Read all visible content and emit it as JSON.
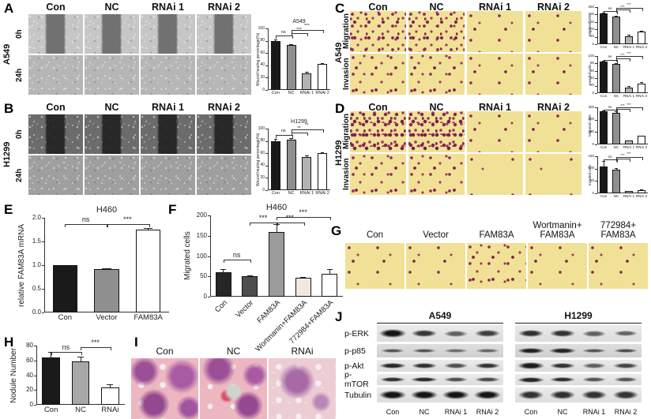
{
  "panels": {
    "A": {
      "letter": "A",
      "cell_line": "A549",
      "row_labels": [
        "0h",
        "24h"
      ],
      "columns": [
        "Con",
        "NC",
        "RNAi 1",
        "RNAi 2"
      ]
    },
    "B": {
      "letter": "B",
      "cell_line": "H1299",
      "row_labels": [
        "0h",
        "24h"
      ],
      "columns": [
        "Con",
        "NC",
        "RNAi 1",
        "RNAi 2"
      ]
    },
    "C": {
      "letter": "C",
      "cell_line": "A549",
      "row_labels": [
        "Migration",
        "Invasion"
      ],
      "columns": [
        "Con",
        "NC",
        "RNAi 1",
        "RNAi 2"
      ]
    },
    "D": {
      "letter": "D",
      "cell_line": "H1299",
      "row_labels": [
        "Migration",
        "Invasion"
      ],
      "columns": [
        "Con",
        "NC",
        "RNAi 1",
        "RNAi 2"
      ]
    },
    "E": {
      "letter": "E"
    },
    "F": {
      "letter": "F"
    },
    "G": {
      "letter": "G",
      "columns": [
        "Con",
        "Vector",
        "FAM83A",
        "Wortmanin+\nFAM83A",
        "772984+\nFAM83A"
      ]
    },
    "H": {
      "letter": "H"
    },
    "I": {
      "letter": "I",
      "columns": [
        "Con",
        "NC",
        "RNAi"
      ]
    },
    "J": {
      "letter": "J",
      "groups": [
        "A549",
        "H1299"
      ],
      "lanes": [
        "Con",
        "NC",
        "RNAi 1",
        "RNAi 2"
      ],
      "rows": [
        {
          "protein": "p-ERK",
          "thickness": 10,
          "a549": [
            1,
            0.78,
            0.5,
            0.72
          ],
          "h1299": [
            0.82,
            0.8,
            0.5,
            0.48
          ]
        },
        {
          "protein": "p-p85",
          "thickness": 7,
          "a549": [
            0.55,
            0.55,
            0.38,
            0.42
          ],
          "h1299": [
            0.92,
            0.88,
            0.55,
            0.6
          ]
        },
        {
          "protein": "p-Akt",
          "thickness": 8,
          "a549": [
            0.88,
            0.82,
            0.62,
            0.8
          ],
          "h1299": [
            0.95,
            0.8,
            0.5,
            0.68
          ]
        },
        {
          "protein": "p-mTOR",
          "thickness": 7,
          "a549": [
            0.82,
            0.88,
            0.62,
            0.66
          ],
          "h1299": [
            0.9,
            0.85,
            0.58,
            0.58
          ]
        },
        {
          "protein": "Tubulin",
          "thickness": 11,
          "a549": [
            1,
            1,
            1,
            1
          ],
          "h1299": [
            0.8,
            0.82,
            0.8,
            0.8
          ]
        }
      ]
    }
  },
  "chart_data": [
    {
      "panel": "A",
      "type": "bar",
      "title": "A549",
      "ylabel": "Wound healing percentage(%)",
      "ylim": [
        0,
        100
      ],
      "yticks": [
        "0",
        "20",
        "40",
        "60",
        "80",
        "100"
      ],
      "categories": [
        "Con",
        "NC",
        "RNAi 1",
        "RNAi 2"
      ],
      "values": [
        80,
        73,
        27,
        42
      ],
      "errors": [
        2,
        2,
        2,
        2
      ],
      "colors": [
        "#1a1a1a",
        "#8f8f8f",
        "#b3b3b3",
        "#ffffff"
      ],
      "sig": [
        {
          "x1": 0,
          "x2": 1,
          "y": 88,
          "label": "ns"
        },
        {
          "x1": 1,
          "x2": 2,
          "y": 92,
          "label": "***"
        },
        {
          "x1": 1,
          "x2": 3,
          "y": 98,
          "label": "***"
        }
      ]
    },
    {
      "panel": "B",
      "type": "bar",
      "title": "H1299",
      "ylabel": "Wound healing percentage(%)",
      "ylim": [
        0,
        100
      ],
      "yticks": [
        "0",
        "20",
        "40",
        "60",
        "80",
        "100"
      ],
      "categories": [
        "Con",
        "NC",
        "RNAi 1",
        "RNAi 2"
      ],
      "values": [
        80,
        82,
        54,
        60
      ],
      "errors": [
        3,
        2,
        3,
        2
      ],
      "colors": [
        "#1a1a1a",
        "#8f8f8f",
        "#b3b3b3",
        "#ffffff"
      ],
      "sig": [
        {
          "x1": 0,
          "x2": 1,
          "y": 90,
          "label": "ns"
        },
        {
          "x1": 1,
          "x2": 2,
          "y": 94,
          "label": "**"
        },
        {
          "x1": 1,
          "x2": 3,
          "y": 99,
          "label": "**"
        }
      ]
    },
    {
      "panel": "C-migration",
      "type": "bar",
      "title": "",
      "ylabel": "Migrated cells",
      "ylim": [
        0,
        250
      ],
      "yticks": [
        "0",
        "50",
        "100",
        "150",
        "200",
        "250"
      ],
      "categories": [
        "Con",
        "NC",
        "RNAi 1",
        "RNAi 2"
      ],
      "values": [
        205,
        188,
        55,
        85
      ],
      "errors": [
        7,
        5,
        7,
        6
      ],
      "colors": [
        "#1a1a1a",
        "#8f8f8f",
        "#b3b3b3",
        "#ffffff"
      ],
      "sig": [
        {
          "x1": 0,
          "x2": 1,
          "y": 222,
          "label": "ns"
        },
        {
          "x1": 1,
          "x2": 2,
          "y": 233,
          "label": "***"
        },
        {
          "x1": 1,
          "x2": 3,
          "y": 246,
          "label": "***"
        }
      ]
    },
    {
      "panel": "C-invasion",
      "type": "bar",
      "title": "",
      "ylabel": "Invaded cells",
      "ylim": [
        0,
        100
      ],
      "yticks": [
        "0",
        "20",
        "40",
        "60",
        "80",
        "100"
      ],
      "categories": [
        "Con",
        "NC",
        "RNAi 1",
        "RNAi 2"
      ],
      "values": [
        85,
        78,
        14,
        26
      ],
      "errors": [
        3,
        3,
        5,
        4
      ],
      "colors": [
        "#1a1a1a",
        "#8f8f8f",
        "#b3b3b3",
        "#ffffff"
      ],
      "sig": [
        {
          "x1": 0,
          "x2": 1,
          "y": 90,
          "label": "ns"
        },
        {
          "x1": 1,
          "x2": 2,
          "y": 94,
          "label": "***"
        },
        {
          "x1": 1,
          "x2": 3,
          "y": 99,
          "label": "***"
        }
      ]
    },
    {
      "panel": "D-migration",
      "type": "bar",
      "title": "",
      "ylabel": "Migrated cells",
      "ylim": [
        0,
        300
      ],
      "yticks": [
        "0",
        "100",
        "200",
        "300"
      ],
      "categories": [
        "Con",
        "NC",
        "RNAi 1",
        "RNAi 2"
      ],
      "values": [
        268,
        258,
        30,
        68
      ],
      "errors": [
        8,
        8,
        4,
        4
      ],
      "colors": [
        "#1a1a1a",
        "#8f8f8f",
        "#b3b3b3",
        "#ffffff"
      ],
      "sig": [
        {
          "x1": 0,
          "x2": 1,
          "y": 280,
          "label": "ns"
        },
        {
          "x1": 1,
          "x2": 2,
          "y": 288,
          "label": "***"
        },
        {
          "x1": 1,
          "x2": 3,
          "y": 298,
          "label": "***"
        }
      ]
    },
    {
      "panel": "D-invasion",
      "type": "bar",
      "title": "",
      "ylabel": "Invaded cells",
      "ylim": [
        0,
        150
      ],
      "yticks": [
        "0",
        "50",
        "100",
        "150"
      ],
      "categories": [
        "Con",
        "NC",
        "RNAi 1",
        "RNAi 2"
      ],
      "values": [
        110,
        96,
        8,
        13
      ],
      "errors": [
        20,
        5,
        2,
        2
      ],
      "colors": [
        "#1a1a1a",
        "#8f8f8f",
        "#b3b3b3",
        "#ffffff"
      ],
      "sig": [
        {
          "x1": 0,
          "x2": 1,
          "y": 136,
          "label": "ns"
        },
        {
          "x1": 1,
          "x2": 2,
          "y": 142,
          "label": "***"
        },
        {
          "x1": 1,
          "x2": 3,
          "y": 148,
          "label": "***"
        }
      ]
    },
    {
      "panel": "E",
      "type": "bar",
      "title": "H460",
      "ylabel": "relative FAM83A mRNA",
      "ylim": [
        0,
        2
      ],
      "yticks": [
        "0.0",
        "0.5",
        "1.0",
        "1.5",
        "2.0"
      ],
      "categories": [
        "Con",
        "Vector",
        "FAM83A"
      ],
      "values": [
        1.0,
        0.92,
        1.75
      ],
      "errors": [
        0,
        0.02,
        0.04
      ],
      "colors": [
        "#1a1a1a",
        "#8f8f8f",
        "#ffffff"
      ],
      "sig": [
        {
          "x1": 0,
          "x2": 1,
          "y": 1.86,
          "label": "ns"
        },
        {
          "x1": 1,
          "x2": 2,
          "y": 1.86,
          "label": "***"
        }
      ]
    },
    {
      "panel": "F",
      "type": "bar",
      "title": "H460",
      "ylabel": "Migrated cells",
      "rotate_labels": true,
      "ylim": [
        0,
        200
      ],
      "yticks": [
        "0",
        "50",
        "100",
        "150",
        "200"
      ],
      "categories": [
        "Con",
        "Vector",
        "FAM83A",
        "Wortmanin+FAM83A",
        "772984+FAM83A"
      ],
      "values": [
        60,
        50,
        160,
        46,
        57
      ],
      "errors": [
        7,
        3,
        18,
        2,
        10
      ],
      "colors": [
        "#262626",
        "#4d4d4d",
        "#9b9b9b",
        "#f4e7e1",
        "#ffffff"
      ],
      "sig": [
        {
          "x1": 0,
          "x2": 1,
          "y": 92,
          "label": "ns"
        },
        {
          "x1": 1,
          "x2": 2,
          "y": 183,
          "label": "***"
        },
        {
          "x1": 2,
          "x2": 3,
          "y": 183,
          "label": "***"
        },
        {
          "x1": 2,
          "x2": 4,
          "y": 197,
          "label": "***"
        }
      ]
    },
    {
      "panel": "H",
      "type": "bar",
      "title": "",
      "ylabel": "Nodule Number",
      "ylim": [
        0,
        80
      ],
      "yticks": [
        "0",
        "20",
        "40",
        "60",
        "80"
      ],
      "categories": [
        "Con",
        "NC",
        "RNAi"
      ],
      "values": [
        64,
        59,
        24
      ],
      "errors": [
        8,
        6,
        4
      ],
      "colors": [
        "#1a1a1a",
        "#a8a8a8",
        "#ffffff"
      ],
      "sig": [
        {
          "x1": 0,
          "x2": 1,
          "y": 72,
          "label": "ns"
        },
        {
          "x1": 1,
          "x2": 2,
          "y": 78,
          "label": "***"
        }
      ]
    }
  ]
}
